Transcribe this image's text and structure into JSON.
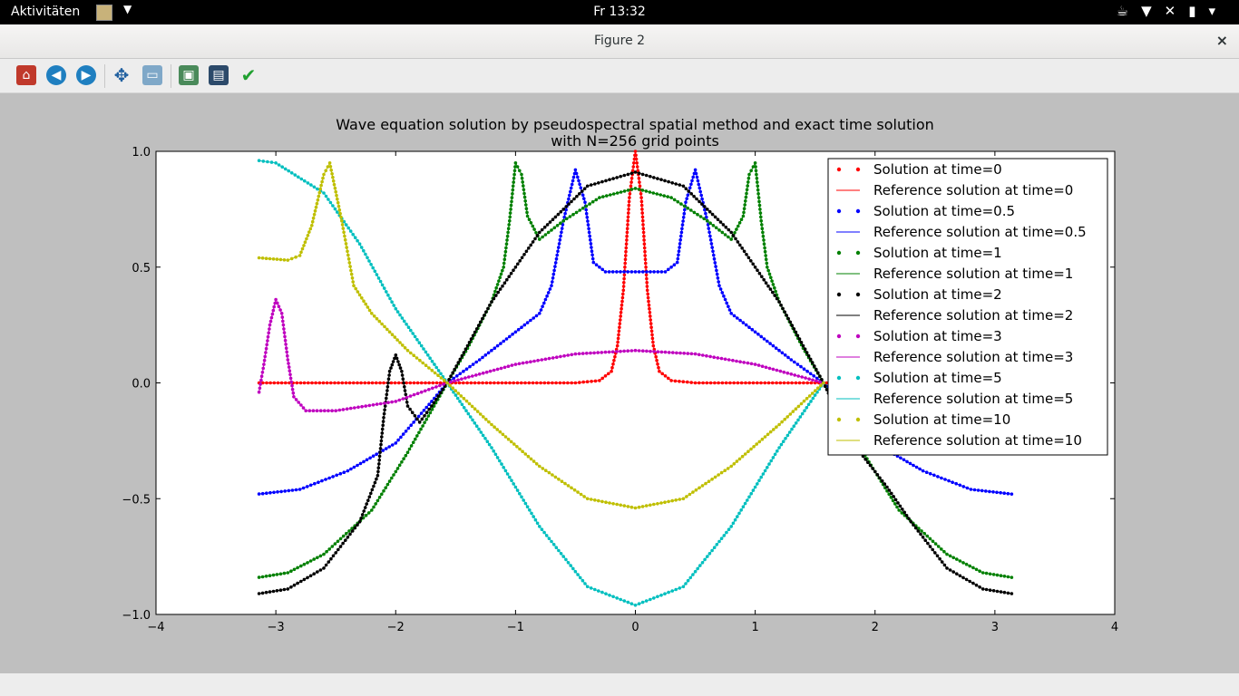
{
  "topbar": {
    "activities": "Aktivitäten",
    "clock": "Fr 13:32"
  },
  "window": {
    "title": "Figure 2",
    "close": "×"
  },
  "toolbar": {
    "icons": [
      "home-icon",
      "back-icon",
      "forward-icon",
      "pan-icon",
      "zoom-icon",
      "configure-subplots-icon",
      "save-icon",
      "edit-check-icon"
    ]
  },
  "chart_data": {
    "type": "line",
    "title": "Wave equation solution by pseudospectral spatial method and exact time solution",
    "subtitle": "with N=256 grid points",
    "xlim": [
      -4,
      4
    ],
    "ylim": [
      -1.0,
      1.0
    ],
    "xticks": [
      -4,
      -3,
      -2,
      -1,
      0,
      1,
      2,
      3,
      4
    ],
    "yticks": [
      1.0,
      0.5,
      0.0,
      -0.5,
      -1.0
    ],
    "xtick_labels": [
      "−4",
      "−3",
      "−2",
      "−1",
      "0",
      "1",
      "2",
      "3",
      "4"
    ],
    "ytick_labels": [
      "1.0",
      "0.5",
      "0.0",
      "−0.5",
      "−1.0"
    ],
    "grid": false,
    "legend_position": "top-right",
    "legend": [
      {
        "label": "Solution at time=0",
        "color": "#ff0000",
        "kind": "dots"
      },
      {
        "label": "Reference solution at time=0",
        "color": "#ff0000",
        "kind": "line"
      },
      {
        "label": "Solution at time=0.5",
        "color": "#0000ff",
        "kind": "dots"
      },
      {
        "label": "Reference solution at time=0.5",
        "color": "#0000ff",
        "kind": "line"
      },
      {
        "label": "Solution at time=1",
        "color": "#008000",
        "kind": "dots"
      },
      {
        "label": "Reference solution at time=1",
        "color": "#008000",
        "kind": "line"
      },
      {
        "label": "Solution at time=2",
        "color": "#000000",
        "kind": "dots"
      },
      {
        "label": "Reference solution at time=2",
        "color": "#000000",
        "kind": "line"
      },
      {
        "label": "Solution at time=3",
        "color": "#bf00bf",
        "kind": "dots"
      },
      {
        "label": "Reference solution at time=3",
        "color": "#bf00bf",
        "kind": "line"
      },
      {
        "label": "Solution at time=5",
        "color": "#00bfbf",
        "kind": "dots"
      },
      {
        "label": "Reference solution at time=5",
        "color": "#00bfbf",
        "kind": "line"
      },
      {
        "label": "Solution at time=10",
        "color": "#bfbf00",
        "kind": "dots"
      },
      {
        "label": "Reference solution at time=10",
        "color": "#bfbf00",
        "kind": "line"
      }
    ],
    "series": [
      {
        "name": "time=0",
        "color": "#ff0000",
        "points": [
          [
            -3.14,
            0
          ],
          [
            -1.5,
            0
          ],
          [
            -0.5,
            0
          ],
          [
            -0.3,
            0.01
          ],
          [
            -0.2,
            0.05
          ],
          [
            -0.15,
            0.16
          ],
          [
            -0.1,
            0.4
          ],
          [
            -0.05,
            0.8
          ],
          [
            0,
            1.0
          ],
          [
            0.05,
            0.8
          ],
          [
            0.1,
            0.4
          ],
          [
            0.15,
            0.16
          ],
          [
            0.2,
            0.05
          ],
          [
            0.3,
            0.01
          ],
          [
            0.5,
            0
          ],
          [
            1.5,
            0
          ],
          [
            3.14,
            0
          ]
        ]
      },
      {
        "name": "time=0.5",
        "color": "#0000ff",
        "points": [
          [
            -3.14,
            -0.48
          ],
          [
            -2.8,
            -0.46
          ],
          [
            -2.4,
            -0.38
          ],
          [
            -2.0,
            -0.26
          ],
          [
            -1.7,
            -0.08
          ],
          [
            -1.57,
            0
          ],
          [
            -1.3,
            0.1
          ],
          [
            -1.0,
            0.22
          ],
          [
            -0.8,
            0.3
          ],
          [
            -0.7,
            0.42
          ],
          [
            -0.6,
            0.7
          ],
          [
            -0.5,
            0.92
          ],
          [
            -0.42,
            0.78
          ],
          [
            -0.35,
            0.52
          ],
          [
            -0.25,
            0.48
          ],
          [
            0,
            0.48
          ],
          [
            0.25,
            0.48
          ],
          [
            0.35,
            0.52
          ],
          [
            0.42,
            0.78
          ],
          [
            0.5,
            0.92
          ],
          [
            0.6,
            0.7
          ],
          [
            0.7,
            0.42
          ],
          [
            0.8,
            0.3
          ],
          [
            1.0,
            0.22
          ],
          [
            1.3,
            0.1
          ],
          [
            1.57,
            0
          ],
          [
            1.7,
            -0.08
          ],
          [
            2.0,
            -0.26
          ],
          [
            2.4,
            -0.38
          ],
          [
            2.8,
            -0.46
          ],
          [
            3.14,
            -0.48
          ]
        ]
      },
      {
        "name": "time=1",
        "color": "#008000",
        "points": [
          [
            -3.14,
            -0.84
          ],
          [
            -2.9,
            -0.82
          ],
          [
            -2.6,
            -0.74
          ],
          [
            -2.2,
            -0.55
          ],
          [
            -1.9,
            -0.3
          ],
          [
            -1.57,
            0
          ],
          [
            -1.4,
            0.15
          ],
          [
            -1.2,
            0.35
          ],
          [
            -1.1,
            0.5
          ],
          [
            -1.05,
            0.7
          ],
          [
            -1.0,
            0.95
          ],
          [
            -0.95,
            0.9
          ],
          [
            -0.9,
            0.72
          ],
          [
            -0.8,
            0.62
          ],
          [
            -0.6,
            0.7
          ],
          [
            -0.3,
            0.8
          ],
          [
            0,
            0.84
          ],
          [
            0.3,
            0.8
          ],
          [
            0.6,
            0.7
          ],
          [
            0.8,
            0.62
          ],
          [
            0.9,
            0.72
          ],
          [
            0.95,
            0.9
          ],
          [
            1.0,
            0.95
          ],
          [
            1.05,
            0.7
          ],
          [
            1.1,
            0.5
          ],
          [
            1.2,
            0.35
          ],
          [
            1.4,
            0.15
          ],
          [
            1.57,
            0
          ],
          [
            1.9,
            -0.3
          ],
          [
            2.2,
            -0.55
          ],
          [
            2.6,
            -0.74
          ],
          [
            2.9,
            -0.82
          ],
          [
            3.14,
            -0.84
          ]
        ]
      },
      {
        "name": "time=2",
        "color": "#000000",
        "points": [
          [
            -3.14,
            -0.91
          ],
          [
            -2.9,
            -0.89
          ],
          [
            -2.6,
            -0.8
          ],
          [
            -2.3,
            -0.6
          ],
          [
            -2.15,
            -0.4
          ],
          [
            -2.1,
            -0.15
          ],
          [
            -2.05,
            0.05
          ],
          [
            -2.0,
            0.12
          ],
          [
            -1.95,
            0.05
          ],
          [
            -1.9,
            -0.1
          ],
          [
            -1.8,
            -0.17
          ],
          [
            -1.7,
            -0.1
          ],
          [
            -1.57,
            0
          ],
          [
            -1.2,
            0.35
          ],
          [
            -0.8,
            0.65
          ],
          [
            -0.4,
            0.85
          ],
          [
            0,
            0.91
          ],
          [
            0.4,
            0.85
          ],
          [
            0.8,
            0.65
          ],
          [
            1.2,
            0.35
          ],
          [
            1.57,
            0
          ],
          [
            1.8,
            -0.25
          ],
          [
            2.1,
            -0.45
          ],
          [
            2.3,
            -0.6
          ],
          [
            2.6,
            -0.8
          ],
          [
            2.9,
            -0.89
          ],
          [
            3.14,
            -0.91
          ]
        ]
      },
      {
        "name": "time=3",
        "color": "#bf00bf",
        "points": [
          [
            -3.14,
            -0.04
          ],
          [
            -3.1,
            0.08
          ],
          [
            -3.05,
            0.25
          ],
          [
            -3.0,
            0.36
          ],
          [
            -2.95,
            0.3
          ],
          [
            -2.9,
            0.1
          ],
          [
            -2.85,
            -0.06
          ],
          [
            -2.75,
            -0.12
          ],
          [
            -2.5,
            -0.12
          ],
          [
            -2.0,
            -0.08
          ],
          [
            -1.57,
            0
          ],
          [
            -1.0,
            0.08
          ],
          [
            -0.5,
            0.125
          ],
          [
            0,
            0.14
          ],
          [
            0.5,
            0.125
          ],
          [
            1.0,
            0.08
          ],
          [
            1.57,
            0
          ]
        ]
      },
      {
        "name": "time=5",
        "color": "#00bfbf",
        "points": [
          [
            -3.14,
            0.96
          ],
          [
            -3.0,
            0.95
          ],
          [
            -2.6,
            0.82
          ],
          [
            -2.3,
            0.6
          ],
          [
            -2.0,
            0.32
          ],
          [
            -1.57,
            0
          ],
          [
            -1.2,
            -0.28
          ],
          [
            -0.8,
            -0.62
          ],
          [
            -0.4,
            -0.88
          ],
          [
            0,
            -0.96
          ],
          [
            0.4,
            -0.88
          ],
          [
            0.8,
            -0.62
          ],
          [
            1.2,
            -0.28
          ],
          [
            1.57,
            0
          ]
        ]
      },
      {
        "name": "time=10",
        "color": "#bfbf00",
        "points": [
          [
            -3.14,
            0.54
          ],
          [
            -2.9,
            0.53
          ],
          [
            -2.8,
            0.55
          ],
          [
            -2.7,
            0.68
          ],
          [
            -2.6,
            0.9
          ],
          [
            -2.55,
            0.95
          ],
          [
            -2.45,
            0.7
          ],
          [
            -2.35,
            0.42
          ],
          [
            -2.2,
            0.3
          ],
          [
            -1.9,
            0.14
          ],
          [
            -1.57,
            0
          ],
          [
            -1.2,
            -0.18
          ],
          [
            -0.8,
            -0.36
          ],
          [
            -0.4,
            -0.5
          ],
          [
            0,
            -0.54
          ],
          [
            0.4,
            -0.5
          ],
          [
            0.8,
            -0.36
          ],
          [
            1.2,
            -0.18
          ],
          [
            1.57,
            0
          ]
        ]
      }
    ]
  }
}
